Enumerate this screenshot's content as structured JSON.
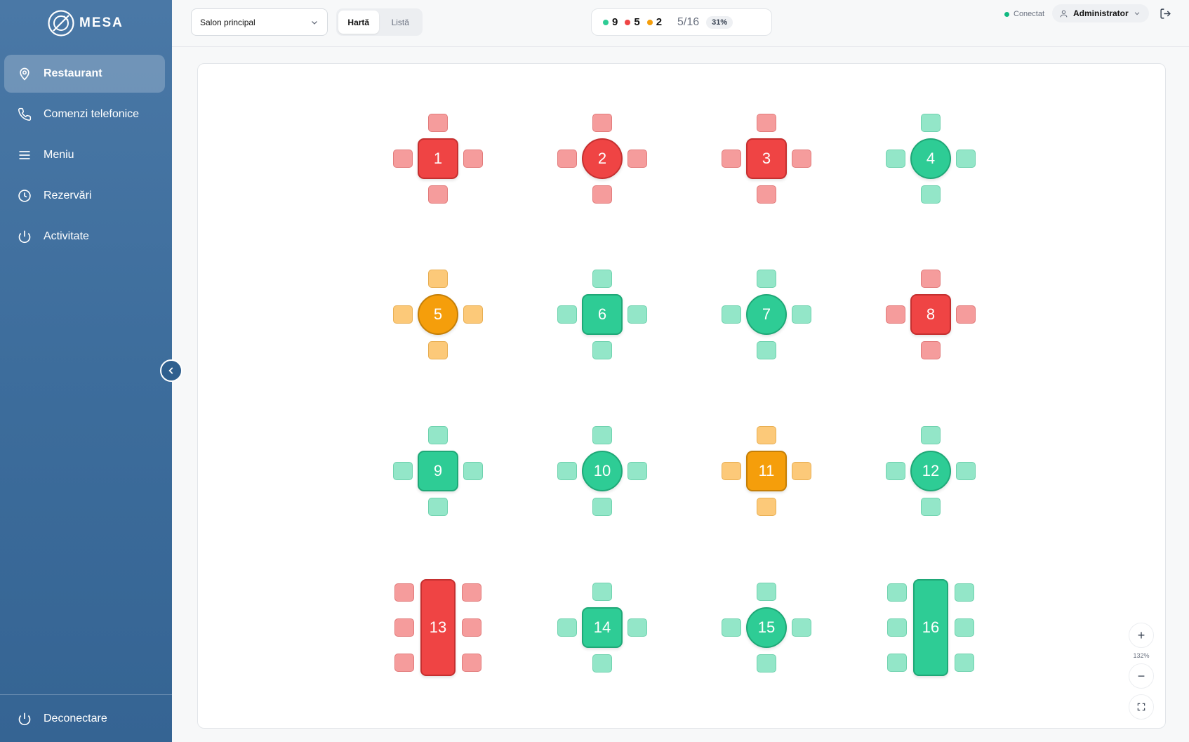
{
  "app": {
    "logo_text": "MESA"
  },
  "sidebar": {
    "items": [
      {
        "label": "Restaurant",
        "icon": "map-pin-icon",
        "active": true
      },
      {
        "label": "Comenzi telefonice",
        "icon": "phone-icon",
        "active": false
      },
      {
        "label": "Meniu",
        "icon": "menu-lines-icon",
        "active": false
      },
      {
        "label": "Rezervări",
        "icon": "clock-icon",
        "active": false
      },
      {
        "label": "Activitate",
        "icon": "power-icon",
        "active": false
      }
    ],
    "logout_label": "Deconectare"
  },
  "topbar": {
    "hall_select": "Salon principal",
    "view_options": [
      "Hartă",
      "Listă"
    ],
    "active_view": "Hartă",
    "stats": {
      "free": "9",
      "occupied": "5",
      "reserved": "2",
      "occupancy": "5/16",
      "percent": "31%"
    },
    "connection_status": "Conectat",
    "user": "Administrator"
  },
  "colors": {
    "free": "#2ecc95",
    "free_chair": "#93e6c8",
    "occupied": "#ef4444",
    "occupied_chair": "#f59c9c",
    "reserved": "#f59e0b",
    "reserved_chair": "#fcc979",
    "connected": "#10b981"
  },
  "tables": [
    {
      "number": "1",
      "status": "occupied",
      "shape": "square"
    },
    {
      "number": "2",
      "status": "occupied",
      "shape": "round"
    },
    {
      "number": "3",
      "status": "occupied",
      "shape": "square"
    },
    {
      "number": "4",
      "status": "free",
      "shape": "round"
    },
    {
      "number": "5",
      "status": "reserved",
      "shape": "round"
    },
    {
      "number": "6",
      "status": "free",
      "shape": "square"
    },
    {
      "number": "7",
      "status": "free",
      "shape": "round"
    },
    {
      "number": "8",
      "status": "occupied",
      "shape": "square"
    },
    {
      "number": "9",
      "status": "free",
      "shape": "square"
    },
    {
      "number": "10",
      "status": "free",
      "shape": "round"
    },
    {
      "number": "11",
      "status": "reserved",
      "shape": "square"
    },
    {
      "number": "12",
      "status": "free",
      "shape": "round"
    },
    {
      "number": "13",
      "status": "occupied",
      "shape": "long"
    },
    {
      "number": "14",
      "status": "free",
      "shape": "square"
    },
    {
      "number": "15",
      "status": "free",
      "shape": "round"
    },
    {
      "number": "16",
      "status": "free",
      "shape": "long"
    }
  ],
  "zoom": {
    "level": "132%",
    "zoom_in": "+",
    "zoom_out": "−"
  }
}
